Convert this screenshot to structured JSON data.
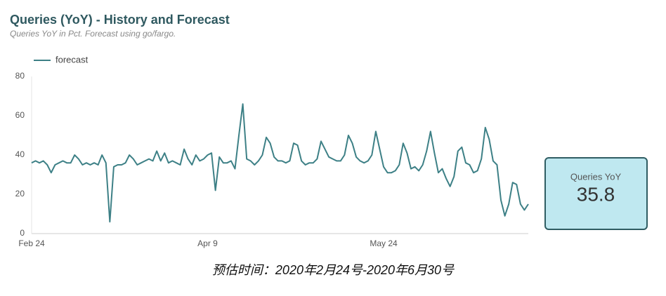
{
  "chart_data": {
    "type": "line",
    "title": "Queries (YoY) - History and Forecast",
    "subtitle": "Queries YoY in Pct. Forecast using go/fargo.",
    "categories": [
      "Feb 24",
      null,
      null,
      null,
      null,
      null,
      null,
      null,
      null,
      null,
      null,
      null,
      null,
      null,
      null,
      null,
      null,
      null,
      null,
      null,
      null,
      null,
      null,
      null,
      null,
      null,
      null,
      null,
      null,
      null,
      null,
      null,
      null,
      null,
      null,
      null,
      null,
      null,
      null,
      null,
      null,
      null,
      null,
      null,
      null,
      "Apr 9",
      null,
      null,
      null,
      null,
      null,
      null,
      null,
      null,
      null,
      null,
      null,
      null,
      null,
      null,
      null,
      null,
      null,
      null,
      null,
      null,
      null,
      null,
      null,
      null,
      null,
      null,
      null,
      null,
      null,
      null,
      null,
      null,
      null,
      null,
      null,
      null,
      null,
      null,
      null,
      null,
      null,
      null,
      null,
      null,
      "May 24",
      null,
      null,
      null,
      null,
      null,
      null,
      null,
      null,
      null,
      null,
      null,
      null,
      null,
      null,
      null,
      null,
      null,
      null,
      null,
      null,
      null,
      null,
      null,
      null,
      null,
      null,
      null,
      null,
      null,
      null,
      null,
      null,
      null,
      null,
      null,
      null,
      null
    ],
    "series": [
      {
        "name": "forecast",
        "color": "#3d8086",
        "values": [
          36,
          37,
          36,
          37,
          35,
          31,
          35,
          36,
          37,
          36,
          36,
          40,
          38,
          35,
          36,
          35,
          36,
          35,
          40,
          36,
          6,
          34,
          35,
          35,
          36,
          40,
          38,
          35,
          36,
          37,
          38,
          37,
          42,
          37,
          41,
          36,
          37,
          36,
          35,
          43,
          38,
          35,
          40,
          37,
          38,
          40,
          41,
          22,
          39,
          36,
          36,
          37,
          33,
          50,
          66,
          38,
          37,
          35,
          37,
          40,
          49,
          46,
          39,
          37,
          37,
          36,
          37,
          46,
          45,
          37,
          35,
          36,
          36,
          38,
          47,
          43,
          39,
          38,
          37,
          37,
          40,
          50,
          46,
          39,
          37,
          36,
          37,
          40,
          52,
          43,
          34,
          31,
          31,
          32,
          35,
          46,
          41,
          33,
          34,
          32,
          35,
          42,
          52,
          41,
          31,
          33,
          28,
          24,
          29,
          42,
          44,
          36,
          35,
          31,
          32,
          38,
          54,
          48,
          37,
          35,
          17,
          9,
          15,
          26,
          25,
          15,
          12,
          15
        ]
      }
    ],
    "ylim": [
      0,
      80
    ],
    "yticks": [
      0,
      20,
      40,
      60,
      80
    ],
    "grid": false,
    "legend": "top-left"
  },
  "scorecard": {
    "label": "Queries YoY",
    "value": 35.8
  },
  "caption": "预估时间：2020年2月24号-2020年6月30号"
}
